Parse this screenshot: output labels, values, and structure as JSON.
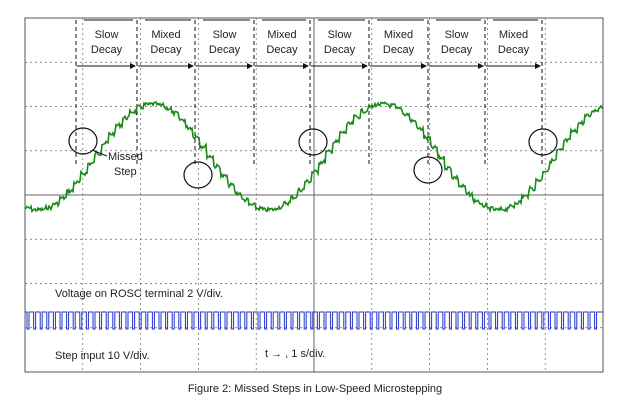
{
  "phase_labels": [
    {
      "line1": "Slow",
      "line2": "Decay"
    },
    {
      "line1": "Mixed",
      "line2": "Decay"
    },
    {
      "line1": "Slow",
      "line2": "Decay"
    },
    {
      "line1": "Mixed",
      "line2": "Decay"
    },
    {
      "line1": "Slow",
      "line2": "Decay"
    },
    {
      "line1": "Mixed",
      "line2": "Decay"
    },
    {
      "line1": "Slow",
      "line2": "Decay"
    },
    {
      "line1": "Mixed",
      "line2": "Decay"
    }
  ],
  "annotation": {
    "line1": "Missed",
    "line2": "Step"
  },
  "rosc_label": "Voltage on ROSC terminal 2 V/div.",
  "step_label": "Step input 10 V/div.",
  "time_scale": "t → , 1 s/div.",
  "caption": "Figure 2: Missed Steps in Low-Speed Microstepping"
}
